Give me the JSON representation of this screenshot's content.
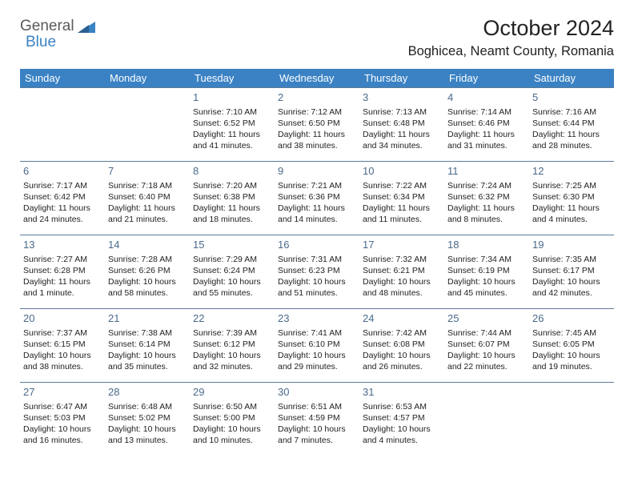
{
  "logo": {
    "part1": "General",
    "part2": "Blue"
  },
  "title": "October 2024",
  "location": "Boghicea, Neamt County, Romania",
  "colors": {
    "header_bg": "#3b82c4",
    "border": "#5c7a99",
    "daynum": "#4a6a8a",
    "text": "#222222",
    "bg": "#ffffff",
    "logo_blue": "#3b82c4",
    "logo_gray": "#5a5a5a"
  },
  "day_headers": [
    "Sunday",
    "Monday",
    "Tuesday",
    "Wednesday",
    "Thursday",
    "Friday",
    "Saturday"
  ],
  "weeks": [
    [
      null,
      null,
      {
        "n": "1",
        "sr": "Sunrise: 7:10 AM",
        "ss": "Sunset: 6:52 PM",
        "dl": "Daylight: 11 hours and 41 minutes."
      },
      {
        "n": "2",
        "sr": "Sunrise: 7:12 AM",
        "ss": "Sunset: 6:50 PM",
        "dl": "Daylight: 11 hours and 38 minutes."
      },
      {
        "n": "3",
        "sr": "Sunrise: 7:13 AM",
        "ss": "Sunset: 6:48 PM",
        "dl": "Daylight: 11 hours and 34 minutes."
      },
      {
        "n": "4",
        "sr": "Sunrise: 7:14 AM",
        "ss": "Sunset: 6:46 PM",
        "dl": "Daylight: 11 hours and 31 minutes."
      },
      {
        "n": "5",
        "sr": "Sunrise: 7:16 AM",
        "ss": "Sunset: 6:44 PM",
        "dl": "Daylight: 11 hours and 28 minutes."
      }
    ],
    [
      {
        "n": "6",
        "sr": "Sunrise: 7:17 AM",
        "ss": "Sunset: 6:42 PM",
        "dl": "Daylight: 11 hours and 24 minutes."
      },
      {
        "n": "7",
        "sr": "Sunrise: 7:18 AM",
        "ss": "Sunset: 6:40 PM",
        "dl": "Daylight: 11 hours and 21 minutes."
      },
      {
        "n": "8",
        "sr": "Sunrise: 7:20 AM",
        "ss": "Sunset: 6:38 PM",
        "dl": "Daylight: 11 hours and 18 minutes."
      },
      {
        "n": "9",
        "sr": "Sunrise: 7:21 AM",
        "ss": "Sunset: 6:36 PM",
        "dl": "Daylight: 11 hours and 14 minutes."
      },
      {
        "n": "10",
        "sr": "Sunrise: 7:22 AM",
        "ss": "Sunset: 6:34 PM",
        "dl": "Daylight: 11 hours and 11 minutes."
      },
      {
        "n": "11",
        "sr": "Sunrise: 7:24 AM",
        "ss": "Sunset: 6:32 PM",
        "dl": "Daylight: 11 hours and 8 minutes."
      },
      {
        "n": "12",
        "sr": "Sunrise: 7:25 AM",
        "ss": "Sunset: 6:30 PM",
        "dl": "Daylight: 11 hours and 4 minutes."
      }
    ],
    [
      {
        "n": "13",
        "sr": "Sunrise: 7:27 AM",
        "ss": "Sunset: 6:28 PM",
        "dl": "Daylight: 11 hours and 1 minute."
      },
      {
        "n": "14",
        "sr": "Sunrise: 7:28 AM",
        "ss": "Sunset: 6:26 PM",
        "dl": "Daylight: 10 hours and 58 minutes."
      },
      {
        "n": "15",
        "sr": "Sunrise: 7:29 AM",
        "ss": "Sunset: 6:24 PM",
        "dl": "Daylight: 10 hours and 55 minutes."
      },
      {
        "n": "16",
        "sr": "Sunrise: 7:31 AM",
        "ss": "Sunset: 6:23 PM",
        "dl": "Daylight: 10 hours and 51 minutes."
      },
      {
        "n": "17",
        "sr": "Sunrise: 7:32 AM",
        "ss": "Sunset: 6:21 PM",
        "dl": "Daylight: 10 hours and 48 minutes."
      },
      {
        "n": "18",
        "sr": "Sunrise: 7:34 AM",
        "ss": "Sunset: 6:19 PM",
        "dl": "Daylight: 10 hours and 45 minutes."
      },
      {
        "n": "19",
        "sr": "Sunrise: 7:35 AM",
        "ss": "Sunset: 6:17 PM",
        "dl": "Daylight: 10 hours and 42 minutes."
      }
    ],
    [
      {
        "n": "20",
        "sr": "Sunrise: 7:37 AM",
        "ss": "Sunset: 6:15 PM",
        "dl": "Daylight: 10 hours and 38 minutes."
      },
      {
        "n": "21",
        "sr": "Sunrise: 7:38 AM",
        "ss": "Sunset: 6:14 PM",
        "dl": "Daylight: 10 hours and 35 minutes."
      },
      {
        "n": "22",
        "sr": "Sunrise: 7:39 AM",
        "ss": "Sunset: 6:12 PM",
        "dl": "Daylight: 10 hours and 32 minutes."
      },
      {
        "n": "23",
        "sr": "Sunrise: 7:41 AM",
        "ss": "Sunset: 6:10 PM",
        "dl": "Daylight: 10 hours and 29 minutes."
      },
      {
        "n": "24",
        "sr": "Sunrise: 7:42 AM",
        "ss": "Sunset: 6:08 PM",
        "dl": "Daylight: 10 hours and 26 minutes."
      },
      {
        "n": "25",
        "sr": "Sunrise: 7:44 AM",
        "ss": "Sunset: 6:07 PM",
        "dl": "Daylight: 10 hours and 22 minutes."
      },
      {
        "n": "26",
        "sr": "Sunrise: 7:45 AM",
        "ss": "Sunset: 6:05 PM",
        "dl": "Daylight: 10 hours and 19 minutes."
      }
    ],
    [
      {
        "n": "27",
        "sr": "Sunrise: 6:47 AM",
        "ss": "Sunset: 5:03 PM",
        "dl": "Daylight: 10 hours and 16 minutes."
      },
      {
        "n": "28",
        "sr": "Sunrise: 6:48 AM",
        "ss": "Sunset: 5:02 PM",
        "dl": "Daylight: 10 hours and 13 minutes."
      },
      {
        "n": "29",
        "sr": "Sunrise: 6:50 AM",
        "ss": "Sunset: 5:00 PM",
        "dl": "Daylight: 10 hours and 10 minutes."
      },
      {
        "n": "30",
        "sr": "Sunrise: 6:51 AM",
        "ss": "Sunset: 4:59 PM",
        "dl": "Daylight: 10 hours and 7 minutes."
      },
      {
        "n": "31",
        "sr": "Sunrise: 6:53 AM",
        "ss": "Sunset: 4:57 PM",
        "dl": "Daylight: 10 hours and 4 minutes."
      },
      null,
      null
    ]
  ]
}
